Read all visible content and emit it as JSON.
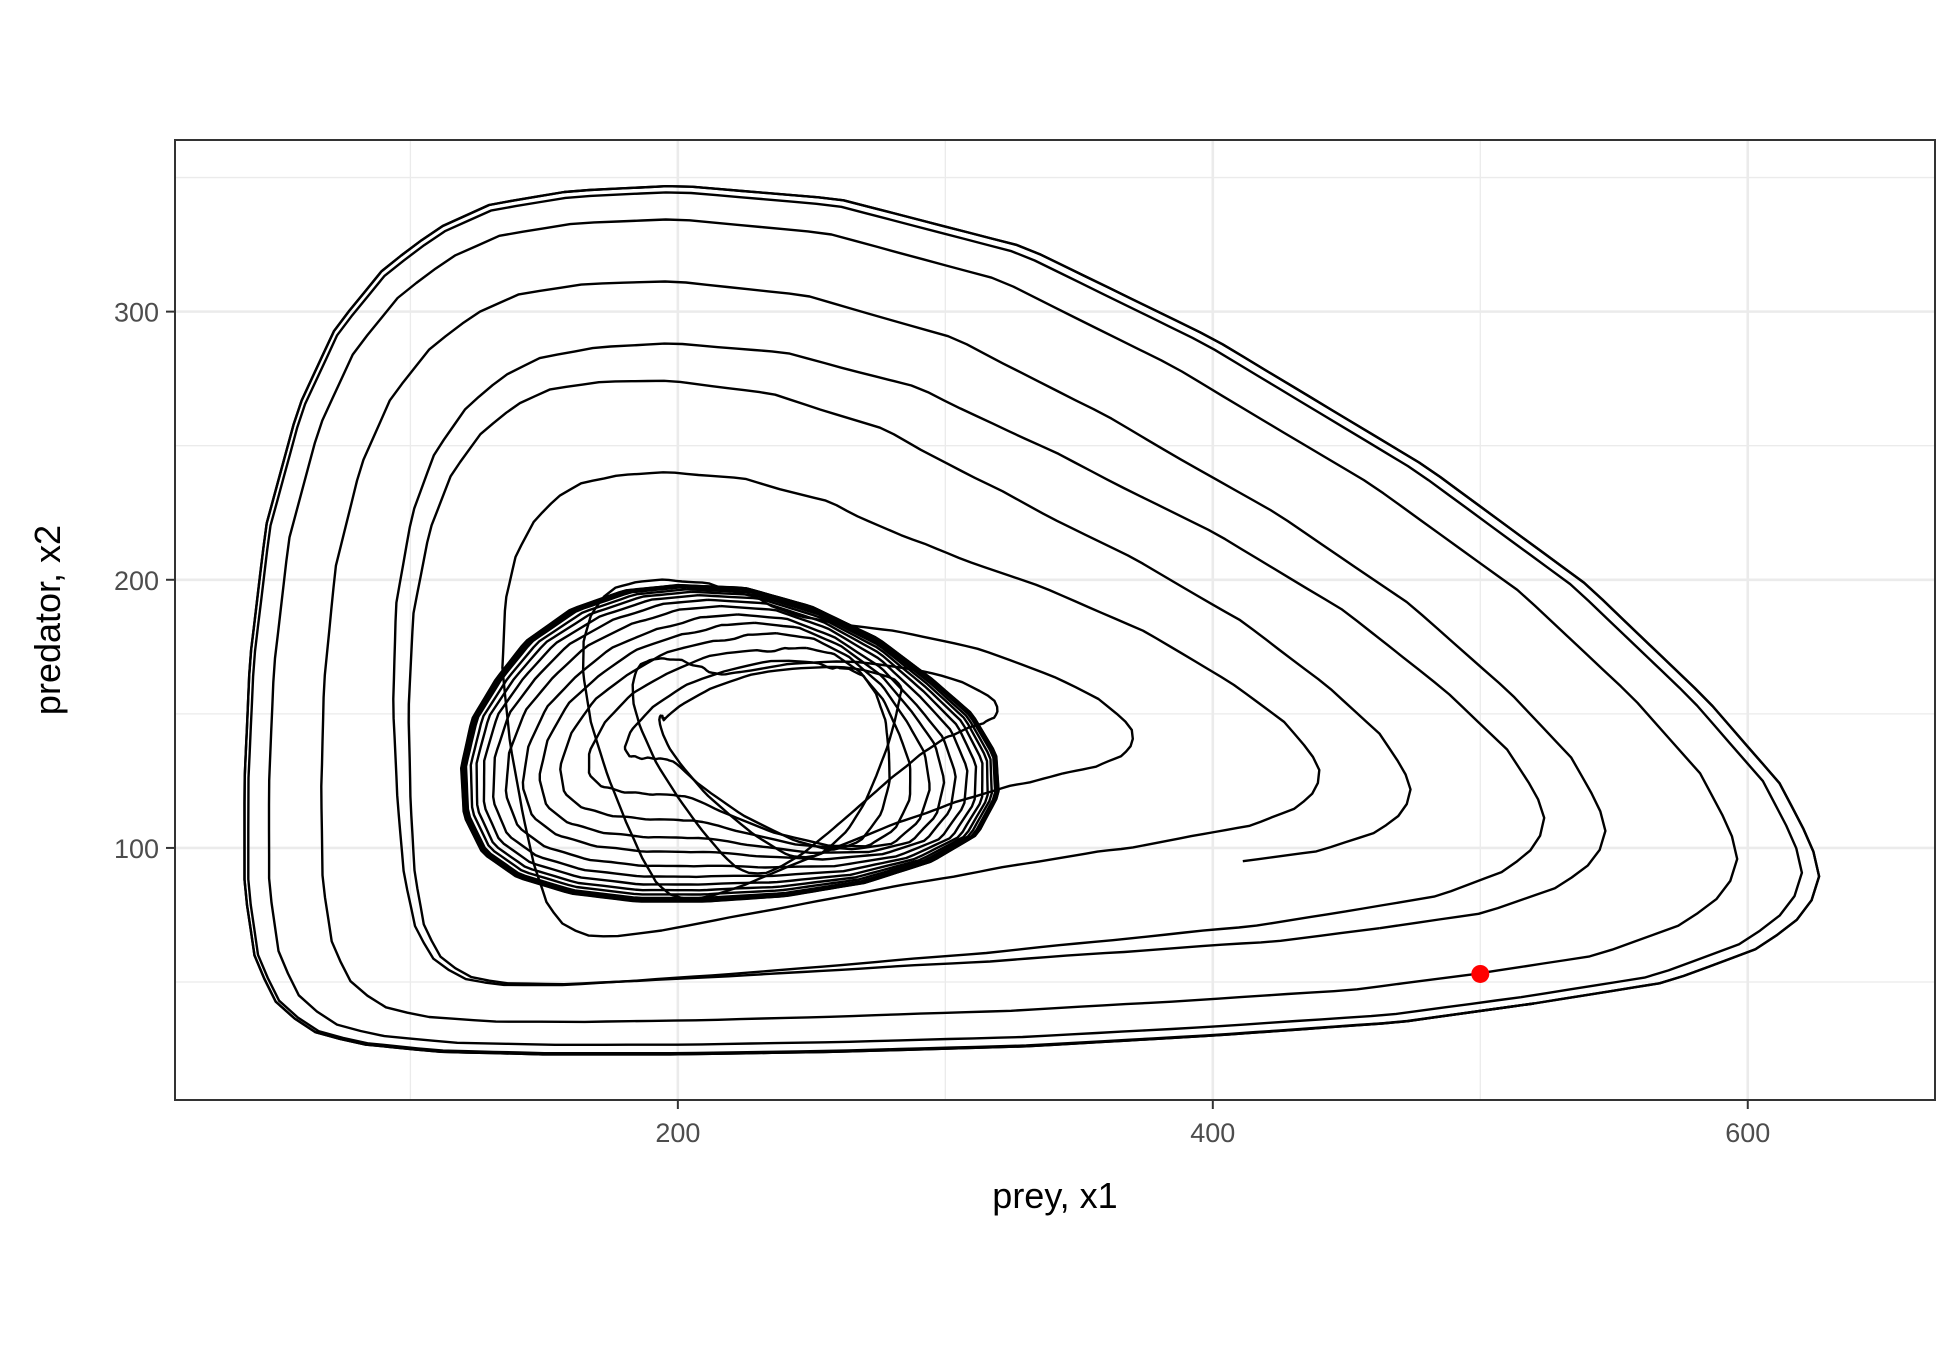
{
  "chart_data": {
    "type": "line",
    "title": "",
    "xlabel": "prey, x1",
    "ylabel": "predator, x2",
    "xlim": [
      12,
      670
    ],
    "ylim": [
      6,
      364
    ],
    "x_ticks": [
      200,
      400,
      600
    ],
    "y_ticks": [
      100,
      200,
      300
    ],
    "x_tick_labels": [
      "200",
      "400",
      "600"
    ],
    "y_tick_labels": [
      "100",
      "200",
      "300"
    ],
    "grid": true,
    "legend": "none",
    "colors": {
      "trajectory": "#000000",
      "start_point": "#ff0000",
      "grid": "#ebebeb",
      "panel_border": "#333333"
    },
    "trajectory": {
      "description": "spiral from the start point out to the outer limit cycle and in to the inner limit cycle",
      "start": {
        "x": 500,
        "y": 53
      },
      "outer_cycle": {
        "points": [
          [
            520,
            42
          ],
          [
            570,
            50
          ],
          [
            605,
            63
          ],
          [
            622,
            76
          ],
          [
            627,
            88
          ],
          [
            624,
            101
          ],
          [
            612,
            124
          ],
          [
            585,
            155
          ],
          [
            540,
            198
          ],
          [
            480,
            242
          ],
          [
            400,
            290
          ],
          [
            330,
            324
          ],
          [
            260,
            342
          ],
          [
            200,
            347
          ],
          [
            160,
            345
          ],
          [
            130,
            340
          ],
          [
            110,
            331
          ],
          [
            90,
            316
          ],
          [
            72,
            294
          ],
          [
            58,
            264
          ],
          [
            46,
            220
          ],
          [
            40,
            170
          ],
          [
            38,
            125
          ],
          [
            38,
            85
          ],
          [
            42,
            58
          ],
          [
            50,
            42
          ],
          [
            62,
            32
          ],
          [
            80,
            27
          ],
          [
            110,
            24
          ],
          [
            150,
            23
          ],
          [
            200,
            23
          ],
          [
            260,
            24
          ],
          [
            330,
            26
          ],
          [
            400,
            30
          ],
          [
            470,
            35
          ],
          [
            520,
            42
          ]
        ]
      },
      "inner_cycle": {
        "points": [
          [
            200,
            198
          ],
          [
            180,
            196
          ],
          [
            160,
            189
          ],
          [
            143,
            177
          ],
          [
            132,
            163
          ],
          [
            123,
            148
          ],
          [
            119,
            130
          ],
          [
            120,
            112
          ],
          [
            127,
            98
          ],
          [
            140,
            89
          ],
          [
            160,
            83
          ],
          [
            185,
            80
          ],
          [
            210,
            80
          ],
          [
            240,
            82
          ],
          [
            270,
            87
          ],
          [
            295,
            95
          ],
          [
            312,
            105
          ],
          [
            320,
            120
          ],
          [
            319,
            135
          ],
          [
            310,
            150
          ],
          [
            295,
            163
          ],
          [
            275,
            178
          ],
          [
            250,
            190
          ],
          [
            225,
            197
          ],
          [
            200,
            198
          ]
        ]
      }
    }
  }
}
